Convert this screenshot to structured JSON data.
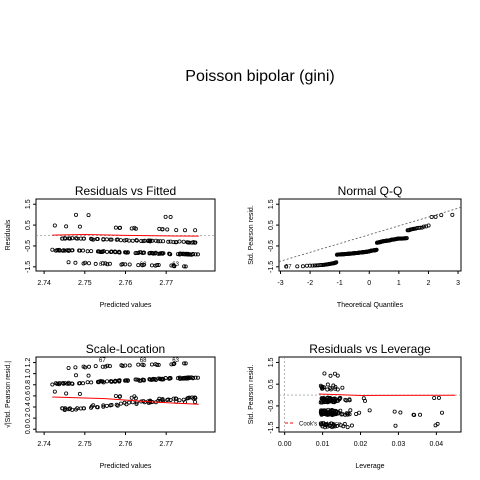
{
  "figure": {
    "title": "Poisson bipolar (gini)"
  },
  "chart_data": [
    {
      "type": "scatter",
      "title": "Residuals vs Fitted",
      "xlabel": "Predicted values",
      "ylabel": "Residuals",
      "xlim": [
        2.738,
        2.782
      ],
      "ylim": [
        -1.7,
        1.75
      ],
      "xticks": [
        "2.74",
        "2.75",
        "2.76",
        "2.77"
      ],
      "yticks": [
        "-1.5",
        "-0.5",
        "0.5",
        "1.5"
      ],
      "grid": false,
      "smooth_color": "#ff0000",
      "annotations": [
        {
          "label": "67",
          "x": 2.7535,
          "y": -1.47
        },
        {
          "label": "68",
          "x": 2.7635,
          "y": -1.47
        },
        {
          "label": "63",
          "x": 2.7715,
          "y": -1.47
        }
      ]
    },
    {
      "type": "scatter",
      "title": "Normal Q-Q",
      "xlabel": "Theoretical Quantiles",
      "ylabel": "Std. Pearson resid.",
      "xlim": [
        -3.05,
        3.1
      ],
      "ylim": [
        -1.7,
        1.75
      ],
      "xticks": [
        "-3",
        "-2",
        "-1",
        "0",
        "1",
        "2",
        "3"
      ],
      "yticks": [
        "-1.5",
        "-0.5",
        "0.5",
        "1.5"
      ],
      "grid": false,
      "reference_line": "dashed",
      "annotations": [
        {
          "label": "67",
          "x": -2.85,
          "y": -1.57
        }
      ]
    },
    {
      "type": "scatter",
      "title": "Scale-Location",
      "xlabel": "Predicted values",
      "ylabel": "√|Std. Pearson resid.|",
      "xlim": [
        2.738,
        2.782
      ],
      "ylim": [
        -0.05,
        1.3
      ],
      "xticks": [
        "2.74",
        "2.75",
        "2.76",
        "2.77"
      ],
      "yticks": [
        "0.0",
        "0.2",
        "0.4",
        "0.6",
        "0.8",
        "1.0",
        "1.2"
      ],
      "grid": false,
      "smooth_color": "#ff0000",
      "annotations": [
        {
          "label": "67",
          "x": 2.7535,
          "y": 1.21
        },
        {
          "label": "68",
          "x": 2.7635,
          "y": 1.21
        },
        {
          "label": "63",
          "x": 2.7715,
          "y": 1.21
        }
      ]
    },
    {
      "type": "scatter",
      "title": "Residuals vs Leverage",
      "xlabel": "Leverage",
      "ylabel": "Std. Pearson resid.",
      "xlim": [
        -0.0015,
        0.0465
      ],
      "ylim": [
        -1.7,
        1.75
      ],
      "xticks": [
        "0.00",
        "0.01",
        "0.02",
        "0.03",
        "0.04"
      ],
      "yticks": [
        "-1.5",
        "-0.5",
        "0.5",
        "1.5"
      ],
      "grid": false,
      "smooth_color": "#ff0000",
      "legend": {
        "label": "Cook's distance",
        "position": "bottom-left"
      },
      "annotations": [
        {
          "label": "65",
          "x": 0.0115,
          "y": -1.45
        }
      ]
    }
  ]
}
